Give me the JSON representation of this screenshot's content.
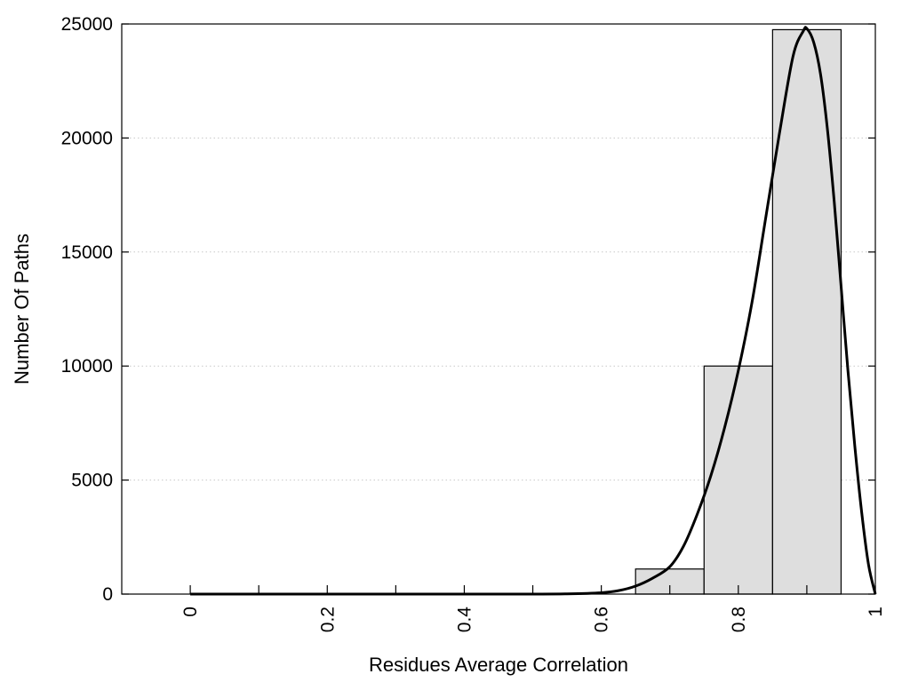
{
  "chart_data": {
    "type": "bar",
    "title": "",
    "xlabel": "Residues Average Correlation",
    "ylabel": "Number Of Paths",
    "xlim": [
      -0.1,
      1.0
    ],
    "ylim": [
      0,
      25000
    ],
    "x_ticks": [
      0,
      0.2,
      0.4,
      0.6,
      0.8,
      1
    ],
    "x_tick_labels": [
      "0",
      "0.2",
      "0.4",
      "0.6",
      "0.8",
      "1"
    ],
    "x_minor_ticks": [
      0.1,
      0.3,
      0.5,
      0.7,
      0.9
    ],
    "y_ticks": [
      0,
      5000,
      10000,
      15000,
      20000,
      25000
    ],
    "y_tick_labels": [
      "0",
      "5000",
      "10000",
      "15000",
      "20000",
      "25000"
    ],
    "grid": "horizontal dotted",
    "bars": [
      {
        "x_start": 0.65,
        "x_end": 0.75,
        "value": 1100
      },
      {
        "x_start": 0.75,
        "x_end": 0.85,
        "value": 10000
      },
      {
        "x_start": 0.85,
        "x_end": 0.95,
        "value": 24750
      }
    ],
    "curve": {
      "x": [
        0,
        0.1,
        0.2,
        0.3,
        0.4,
        0.5,
        0.55,
        0.6,
        0.625,
        0.65,
        0.675,
        0.7,
        0.72,
        0.74,
        0.76,
        0.78,
        0.8,
        0.82,
        0.84,
        0.86,
        0.88,
        0.895,
        0.9,
        0.91,
        0.92,
        0.93,
        0.94,
        0.95,
        0.96,
        0.97,
        0.98,
        0.99,
        1.0
      ],
      "y": [
        0,
        0,
        0,
        0,
        0,
        0,
        10,
        60,
        150,
        350,
        700,
        1200,
        2100,
        3500,
        5200,
        7300,
        9800,
        12800,
        16500,
        20200,
        23600,
        24700,
        24800,
        24200,
        22800,
        20400,
        17200,
        13500,
        9800,
        6500,
        3600,
        1300,
        0
      ]
    },
    "colors": {
      "bar_fill": "#dedede",
      "bar_stroke": "#000000",
      "curve": "#000000",
      "grid": "#c8c8c8"
    }
  }
}
